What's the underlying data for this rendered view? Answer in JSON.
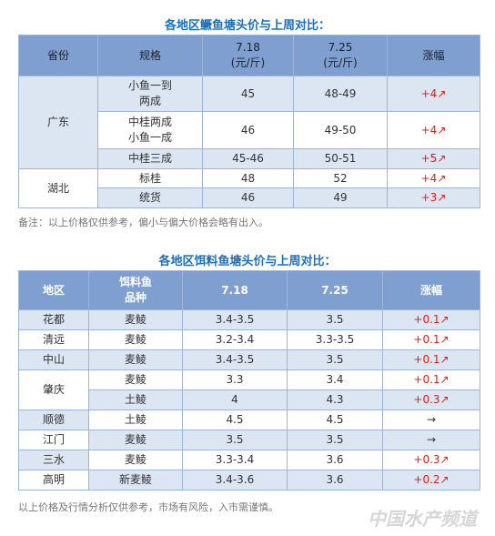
{
  "table1": {
    "title": "各地区鳜鱼塘头价与上周对比：",
    "header": [
      "省份",
      "规格",
      "7.18\n(元/斤)",
      "7.25\n(元/斤)",
      "涨幅"
    ],
    "groups": [
      {
        "region": "广东",
        "rows": [
          [
            "小鱼一到\n两成",
            "45",
            "48-49",
            "+4↗"
          ],
          [
            "中桂两成\n小鱼一成",
            "46",
            "49-50",
            "+4↗"
          ],
          [
            "中桂三成",
            "45-46",
            "50-51",
            "+5↗"
          ]
        ]
      },
      {
        "region": "湖北",
        "rows": [
          [
            "标桂",
            "48",
            "52",
            "+4↗"
          ],
          [
            "统货",
            "46",
            "49",
            "+3↗"
          ]
        ]
      }
    ],
    "note": "备注：以上价格仅供参考，偏小与偏大价格会略有出入。"
  },
  "table2": {
    "title": "各地区饵料鱼塘头价与上周对比：",
    "header": [
      "地区",
      "饵料鱼\n品种",
      "7.18",
      "7.25",
      "涨幅"
    ],
    "groups": [
      {
        "region": "花都",
        "rows": [
          [
            "麦鲮",
            "3.4-3.5",
            "3.5",
            "+0.1↗"
          ]
        ]
      },
      {
        "region": "清远",
        "rows": [
          [
            "麦鲮",
            "3.2-3.4",
            "3.3-3.5",
            "+0.1↗"
          ]
        ]
      },
      {
        "region": "中山",
        "rows": [
          [
            "麦鲮",
            "3.4-3.5",
            "3.5",
            "+0.1↗"
          ]
        ]
      },
      {
        "region": "肇庆",
        "rows": [
          [
            "麦鲮",
            "3.3",
            "3.4",
            "+0.1↗"
          ],
          [
            "土鲮",
            "4",
            "4.3",
            "+0.3↗"
          ]
        ]
      },
      {
        "region": "顺德",
        "rows": [
          [
            "土鲮",
            "4.5",
            "4.5",
            "→"
          ]
        ]
      },
      {
        "region": "江门",
        "rows": [
          [
            "麦鲮",
            "3.5",
            "3.5",
            "→"
          ]
        ]
      },
      {
        "region": "三水",
        "rows": [
          [
            "麦鲮",
            "3.3-3.4",
            "3.6",
            "+0.3↗"
          ]
        ]
      },
      {
        "region": "高明",
        "rows": [
          [
            "新麦鲮",
            "3.4-3.6",
            "3.6",
            "+0.2↗"
          ]
        ]
      }
    ],
    "note": "以上价格及行情分析仅供参考，市场有风险，入市需谨慎。"
  },
  "watermark": "中国水产频道"
}
